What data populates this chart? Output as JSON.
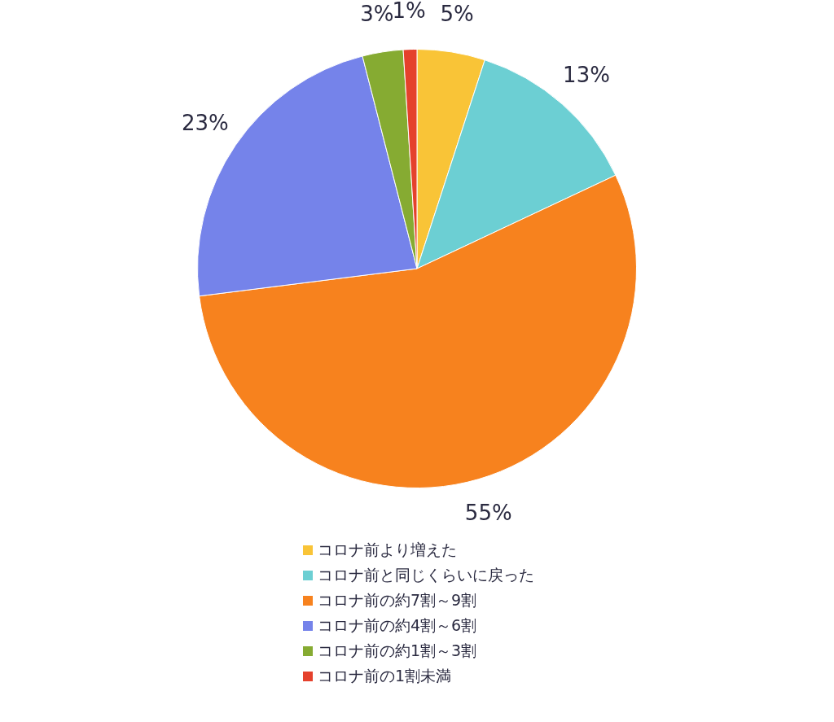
{
  "chart_data": {
    "type": "pie",
    "categories": [
      "コロナ前より増えた",
      "コロナ前と同じくらいに戻った",
      "コロナ前の約7割～9割",
      "コロナ前の約4割～6割",
      "コロナ前の約1割～3割",
      "コロナ前の1割未満"
    ],
    "values": [
      5,
      13,
      55,
      23,
      3,
      1
    ],
    "colors": [
      "#f9c437",
      "#6ccfd3",
      "#f7821e",
      "#7583ea",
      "#86ab32",
      "#e5412c"
    ],
    "value_labels": [
      "5%",
      "13%",
      "55%",
      "23%",
      "3%",
      "1%"
    ],
    "legend": "bottom"
  }
}
